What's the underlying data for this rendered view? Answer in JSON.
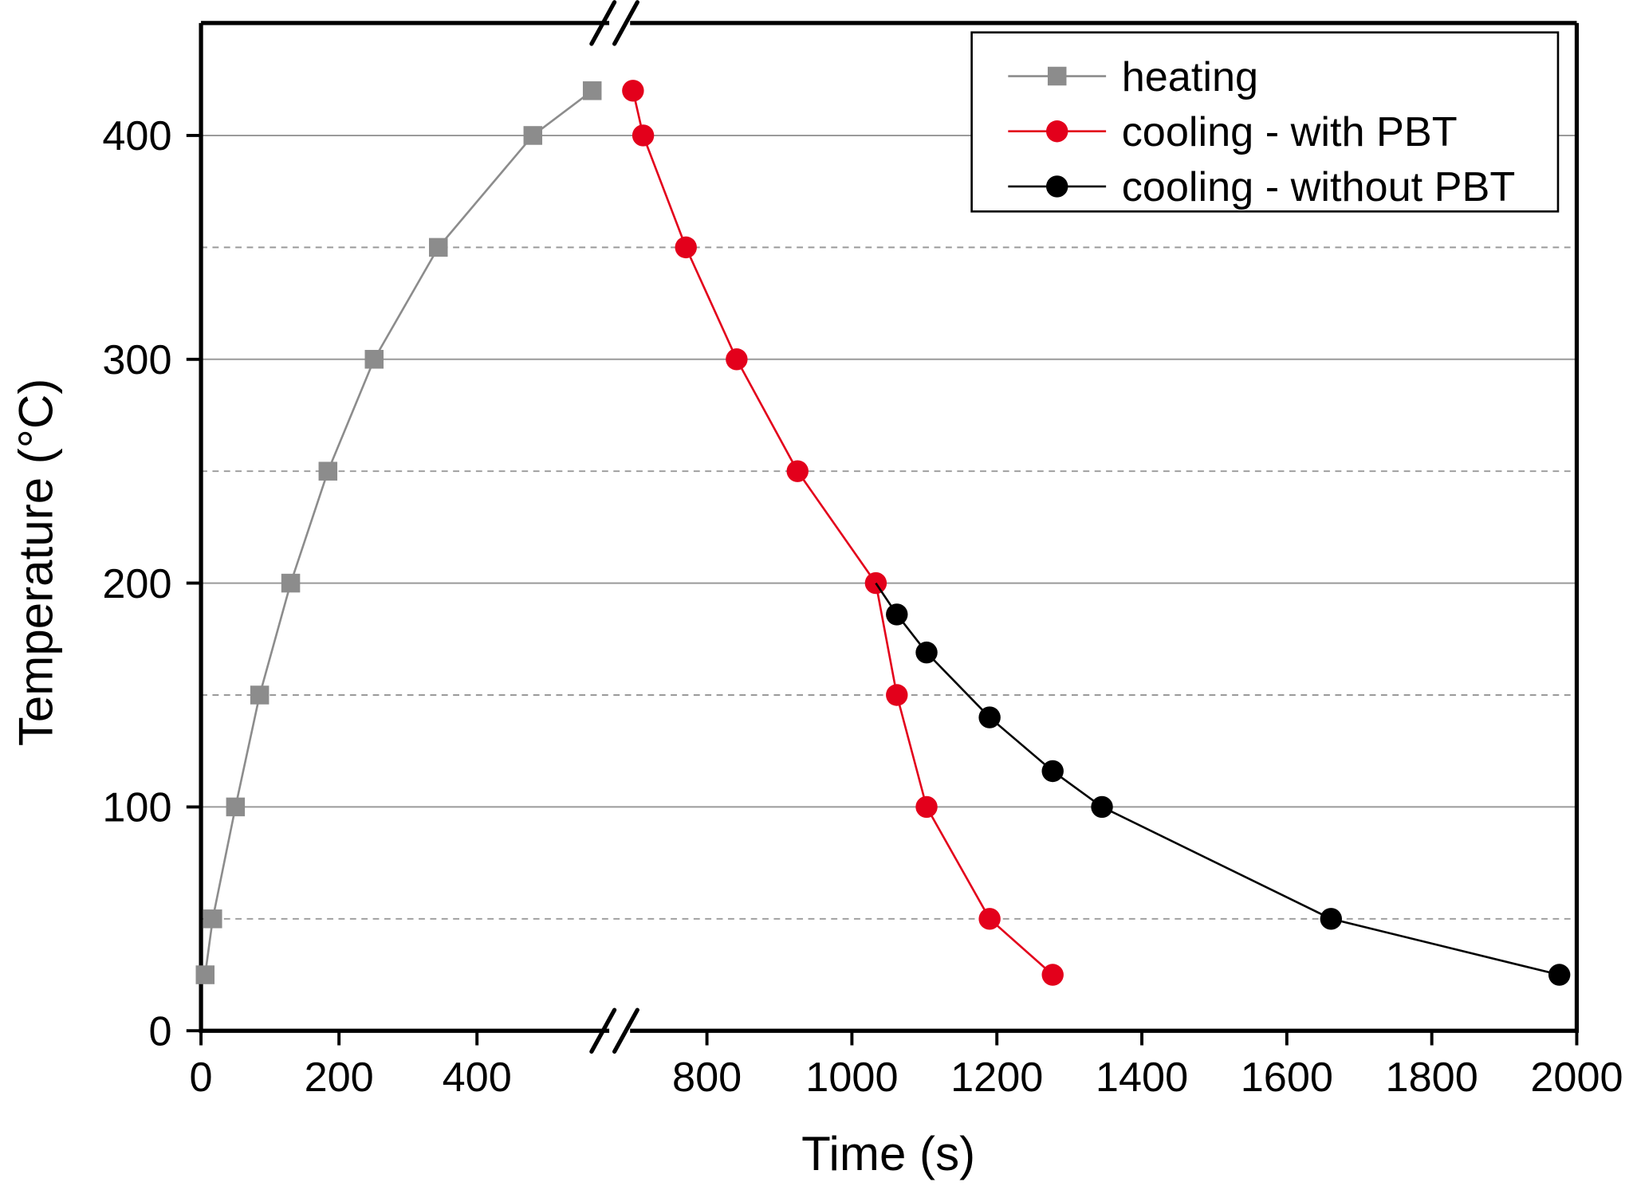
{
  "chart_data": {
    "type": "line",
    "title": "",
    "xlabel": "Time (s)",
    "ylabel": "Temperature (°C)",
    "xlim": [
      0,
      2000
    ],
    "x_axis_break": [
      600,
      690
    ],
    "ylim": [
      0,
      450
    ],
    "x_ticks": [
      0,
      200,
      400,
      800,
      1000,
      1200,
      1400,
      1600,
      1800,
      2000
    ],
    "x_tick_labels": [
      "0",
      "200",
      "400",
      "800",
      "1000",
      "1200",
      "1400",
      "1600",
      "1800",
      "2000"
    ],
    "y_ticks": [
      0,
      100,
      200,
      300,
      400
    ],
    "y_tick_labels": [
      "0",
      "100",
      "200",
      "300",
      "400"
    ],
    "grid": {
      "solid": [
        100,
        200,
        300,
        400
      ],
      "dashed": [
        50,
        150,
        250,
        350
      ]
    },
    "legend_position": "top-right",
    "series": [
      {
        "name": "heating",
        "color": "#8c8c8c",
        "marker": "square",
        "x": [
          6,
          17,
          50,
          85,
          130,
          184,
          251,
          344,
          481,
          567
        ],
        "y": [
          25,
          50,
          100,
          150,
          200,
          250,
          300,
          350,
          400,
          420
        ]
      },
      {
        "name": "cooling - with PBT",
        "color": "#e3001b",
        "marker": "circle",
        "x": [
          698,
          712,
          771,
          841,
          925,
          1033,
          1062,
          1103,
          1190,
          1277
        ],
        "y": [
          420,
          400,
          350,
          300,
          250,
          200,
          150,
          100,
          50,
          25
        ]
      },
      {
        "name": "cooling - without PBT",
        "color": "#000000",
        "marker": "circle",
        "line_start": [
          1033,
          200
        ],
        "x": [
          1062,
          1103,
          1190,
          1277,
          1345,
          1661,
          1976
        ],
        "y": [
          186,
          169,
          140,
          116,
          100,
          50,
          25
        ]
      }
    ]
  }
}
